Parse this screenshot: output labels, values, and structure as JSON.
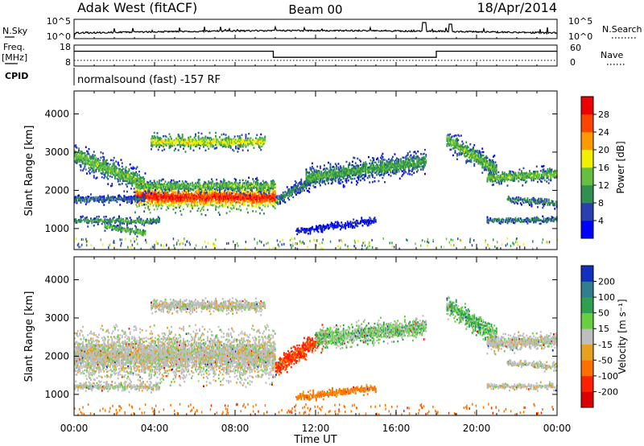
{
  "header": {
    "station": "Adak West (fitACF)",
    "beam": "Beam 00",
    "date": "18/Apr/2014"
  },
  "noise_panel": {
    "left_label": "N.Sky",
    "right_label": "N.Search",
    "left_ticks": [
      "10^5",
      "10^0"
    ],
    "right_ticks": [
      "10^5",
      "10^0"
    ]
  },
  "freq_panel": {
    "left_label_1": "Freq.",
    "left_label_2": "[MHz]",
    "right_label": "Nave",
    "left_ticks": [
      "18",
      "8"
    ],
    "right_ticks": [
      "60",
      "0"
    ],
    "freq_steps": [
      {
        "from_hour": 0.0,
        "to_hour": 9.9,
        "mhz": 14.5
      },
      {
        "from_hour": 9.9,
        "to_hour": 18.0,
        "mhz": 11.0
      },
      {
        "from_hour": 18.0,
        "to_hour": 24.0,
        "mhz": 14.5
      }
    ]
  },
  "cpid_panel": {
    "label": "CPID",
    "text": "normalsound (fast) -157 RF"
  },
  "axis": {
    "ylabel": "Slant Range [km]",
    "xlabel": "Time UT",
    "x_ticks": [
      "00:00",
      "04:00",
      "08:00",
      "12:00",
      "16:00",
      "20:00",
      "00:00"
    ],
    "y_ticks": [
      "1000",
      "2000",
      "3000",
      "4000"
    ]
  },
  "power_scale": {
    "label": "Power [dB]",
    "ticks": [
      "28",
      "24",
      "20",
      "16",
      "12",
      "8",
      "4"
    ],
    "colors": [
      "#0000ff",
      "#2a3fb0",
      "#2f9050",
      "#66c040",
      "#f0f000",
      "#ff9900",
      "#ff4400",
      "#ee0000"
    ]
  },
  "velocity_scale": {
    "label": "Velocity [m s⁻¹]",
    "ticks": [
      "200",
      "100",
      "50",
      "15",
      "-15",
      "-50",
      "-100",
      "-200"
    ],
    "colors": [
      "#1030c0",
      "#2f7f8f",
      "#2fa050",
      "#66d040",
      "#bebebe",
      "#e8a020",
      "#ff7000",
      "#ff2000",
      "#dd0000"
    ]
  },
  "chart_data": {
    "type": "heatmap",
    "x_unit": "hours UT",
    "xlim": [
      0,
      24
    ],
    "ylim": [
      450,
      4600
    ],
    "power_bands": [
      {
        "start": 0.0,
        "end": 3.5,
        "center": 2900,
        "dcenter": -750,
        "width": 180,
        "peak": 14
      },
      {
        "start": 3.0,
        "end": 10.0,
        "center": 1800,
        "dcenter": 0,
        "width": 200,
        "peak": 28
      },
      {
        "start": 0.0,
        "end": 3.5,
        "center": 1750,
        "dcenter": 0,
        "width": 70,
        "peak": 8
      },
      {
        "start": 3.5,
        "end": 10.0,
        "center": 2100,
        "dcenter": 0,
        "width": 100,
        "peak": 14
      },
      {
        "start": 0.0,
        "end": 4.2,
        "center": 1180,
        "dcenter": 0,
        "width": 60,
        "peak": 12
      },
      {
        "start": 1.5,
        "end": 3.5,
        "center": 1050,
        "dcenter": -200,
        "width": 60,
        "peak": 14
      },
      {
        "start": 3.8,
        "end": 9.5,
        "center": 3250,
        "dcenter": 0,
        "width": 110,
        "peak": 18
      },
      {
        "start": 10.0,
        "end": 12.0,
        "center": 1700,
        "dcenter": 600,
        "width": 110,
        "peak": 10
      },
      {
        "start": 11.5,
        "end": 17.5,
        "center": 2300,
        "dcenter": 450,
        "width": 170,
        "peak": 12
      },
      {
        "start": 11.0,
        "end": 15.0,
        "center": 900,
        "dcenter": 300,
        "width": 60,
        "peak": 4
      },
      {
        "start": 18.5,
        "end": 21.0,
        "center": 3300,
        "dcenter": -800,
        "width": 160,
        "peak": 14
      },
      {
        "start": 20.5,
        "end": 24.0,
        "center": 2300,
        "dcenter": 100,
        "width": 110,
        "peak": 14
      },
      {
        "start": 21.5,
        "end": 24.0,
        "center": 1750,
        "dcenter": -100,
        "width": 60,
        "peak": 10
      },
      {
        "start": 20.5,
        "end": 24.0,
        "center": 1200,
        "dcenter": 0,
        "width": 50,
        "peak": 10
      }
    ],
    "velocity_bands": [
      {
        "start": 0.0,
        "end": 10.0,
        "center": 2000,
        "dcenter": 0,
        "width": 400,
        "v": 0
      },
      {
        "start": 0.0,
        "end": 4.2,
        "center": 1180,
        "dcenter": 0,
        "width": 60,
        "v": 0
      },
      {
        "start": 3.8,
        "end": 9.5,
        "center": 3300,
        "dcenter": 0,
        "width": 110,
        "v": 0
      },
      {
        "start": 10.0,
        "end": 12.5,
        "center": 1700,
        "dcenter": 800,
        "width": 160,
        "v": -80
      },
      {
        "start": 12.0,
        "end": 17.5,
        "center": 2450,
        "dcenter": 300,
        "width": 170,
        "v": 20
      },
      {
        "start": 11.0,
        "end": 15.0,
        "center": 900,
        "dcenter": 250,
        "width": 60,
        "v": -40
      },
      {
        "start": 18.5,
        "end": 21.0,
        "center": 3300,
        "dcenter": -800,
        "width": 160,
        "v": 30
      },
      {
        "start": 20.5,
        "end": 24.0,
        "center": 2300,
        "dcenter": 100,
        "width": 130,
        "v": 0
      },
      {
        "start": 21.5,
        "end": 24.0,
        "center": 1800,
        "dcenter": -100,
        "width": 60,
        "v": 0
      },
      {
        "start": 20.5,
        "end": 24.0,
        "center": 1200,
        "dcenter": 0,
        "width": 50,
        "v": 0
      }
    ]
  }
}
